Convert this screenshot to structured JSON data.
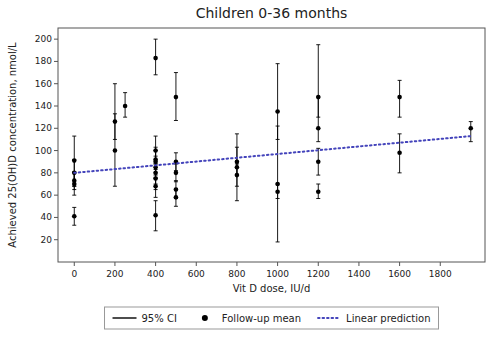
{
  "chart_data": {
    "type": "scatter",
    "title": "Children 0-36 months",
    "xlabel": "Vit D dose, IU/d",
    "ylabel": "Achieved 25(OH)D concentration, nmol/L",
    "xlim": [
      -80,
      2020
    ],
    "ylim": [
      0,
      210
    ],
    "xticks": [
      0,
      200,
      400,
      600,
      800,
      1000,
      1200,
      1400,
      1600,
      1800
    ],
    "yticks": [
      20,
      40,
      60,
      80,
      100,
      120,
      140,
      160,
      180,
      200
    ],
    "grid": false,
    "legend": "bottom",
    "x": [
      0,
      0,
      0,
      0,
      0,
      200,
      200,
      250,
      400,
      400,
      400,
      400,
      400,
      400,
      400,
      400,
      400,
      500,
      500,
      500,
      500,
      500,
      800,
      800,
      800,
      1000,
      1000,
      1000,
      1200,
      1200,
      1200,
      1200,
      1600,
      1600,
      1950
    ],
    "series": [
      {
        "name": "95% CI",
        "type": "errorbar",
        "color": "#000000",
        "ci_low": [
          33,
          68,
          68,
          65,
          60,
          68,
          110,
          130,
          168,
          88,
          80,
          78,
          75,
          70,
          65,
          58,
          28,
          127,
          82,
          72,
          57,
          50,
          78,
          55,
          68,
          110,
          18,
          57,
          130,
          108,
          78,
          57,
          130,
          80,
          108
        ],
        "ci_high": [
          49,
          113,
          92,
          81,
          80,
          133,
          160,
          152,
          200,
          113,
          103,
          100,
          95,
          88,
          83,
          76,
          55,
          170,
          98,
          88,
          73,
          66,
          103,
          115,
          88,
          178,
          122,
          70,
          195,
          148,
          102,
          70,
          163,
          115,
          126
        ]
      },
      {
        "name": "Follow-up mean",
        "type": "scatter",
        "color": "#000000",
        "marker": "circle",
        "values": [
          41,
          91,
          80,
          73,
          70,
          100,
          126,
          140,
          183,
          100,
          92,
          90,
          85,
          80,
          75,
          68,
          42,
          148,
          90,
          80,
          65,
          58,
          90,
          85,
          78,
          135,
          70,
          63,
          148,
          120,
          90,
          63,
          148,
          98,
          120
        ]
      },
      {
        "name": "Linear prediction",
        "type": "line",
        "color": "#4444bb",
        "line_style": "dotted",
        "x": [
          0,
          1950
        ],
        "values": [
          80,
          113
        ]
      }
    ]
  }
}
